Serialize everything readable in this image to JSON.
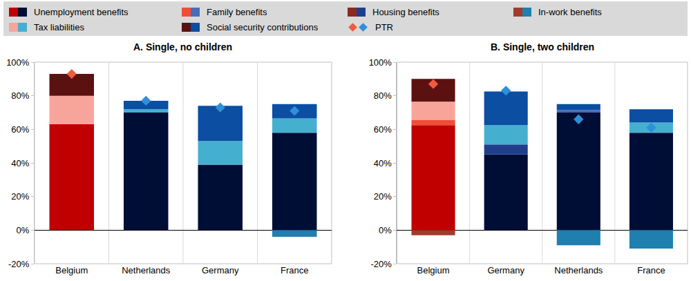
{
  "chart_data": [
    {
      "type": "bar",
      "title": "A. Single, no children",
      "stacked": true,
      "legend": "top",
      "grid": false,
      "categories": [
        "Belgium",
        "Netherlands",
        "Germany",
        "France"
      ],
      "ylim": [
        -20,
        100
      ],
      "yticks": [
        {
          "value": -20,
          "label": "-20%"
        },
        {
          "value": 0,
          "label": "0%"
        },
        {
          "value": 20,
          "label": "20%"
        },
        {
          "value": 40,
          "label": "40%"
        },
        {
          "value": 60,
          "label": "60%"
        },
        {
          "value": 80,
          "label": "80%"
        },
        {
          "value": 100,
          "label": "100%"
        }
      ],
      "series": [
        {
          "name": "Unemployment benefits",
          "colors": [
            "#c00000",
            "#000d35",
            "#000d35",
            "#000d35"
          ],
          "values": [
            63,
            70,
            39,
            58
          ]
        },
        {
          "name": "Family benefits",
          "colors": [
            "#f04e37",
            "#4a6bb8",
            "#4a6bb8",
            "#4a6bb8"
          ],
          "values": [
            0,
            0,
            0,
            0
          ]
        },
        {
          "name": "Housing benefits",
          "colors": [
            "#8c2a22",
            "#1f3f8c",
            "#1f3f8c",
            "#1f3f8c"
          ],
          "values": [
            0,
            0,
            0,
            0
          ]
        },
        {
          "name": "In-work benefits",
          "colors": [
            "#a33b2b",
            "#1f7fae",
            "#1f7fae",
            "#1f7fae"
          ],
          "values": [
            0,
            0,
            0,
            -4
          ]
        },
        {
          "name": "Tax liabilities",
          "colors": [
            "#f7a59a",
            "#45afd0",
            "#45afd0",
            "#45afd0"
          ],
          "values": [
            17,
            2,
            14,
            8.5
          ]
        },
        {
          "name": "Social security contributions",
          "colors": [
            "#5c1111",
            "#0b4ea2",
            "#0b4ea2",
            "#0b4ea2"
          ],
          "values": [
            13,
            5,
            21,
            8.5
          ]
        },
        {
          "name": "PTR",
          "type": "scatter",
          "marker": "diamond",
          "colors": [
            "#f05a40",
            "#2f8fd8",
            "#2f8fd8",
            "#2f8fd8"
          ],
          "values": [
            93,
            77,
            73,
            71
          ]
        }
      ]
    },
    {
      "type": "bar",
      "title": "B. Single, two children",
      "stacked": true,
      "legend": "top",
      "grid": false,
      "categories": [
        "Belgium",
        "Germany",
        "Netherlands",
        "France"
      ],
      "ylim": [
        -20,
        100
      ],
      "yticks": [
        {
          "value": -20,
          "label": "-20%"
        },
        {
          "value": 0,
          "label": "0%"
        },
        {
          "value": 20,
          "label": "20%"
        },
        {
          "value": 40,
          "label": "40%"
        },
        {
          "value": 60,
          "label": "60%"
        },
        {
          "value": 80,
          "label": "80%"
        },
        {
          "value": 100,
          "label": "100%"
        }
      ],
      "series": [
        {
          "name": "Unemployment benefits",
          "colors": [
            "#c00000",
            "#000d35",
            "#000d35",
            "#000d35"
          ],
          "values": [
            62.5,
            45,
            70,
            58
          ]
        },
        {
          "name": "Family benefits",
          "colors": [
            "#f04e37",
            "#4a6bb8",
            "#4a6bb8",
            "#4a6bb8"
          ],
          "values": [
            3,
            0,
            1.5,
            0
          ]
        },
        {
          "name": "Housing benefits",
          "colors": [
            "#8c2a22",
            "#1f3f8c",
            "#1f3f8c",
            "#1f3f8c"
          ],
          "values": [
            0,
            6,
            0,
            0
          ]
        },
        {
          "name": "In-work benefits",
          "colors": [
            "#a33b2b",
            "#1f7fae",
            "#1f7fae",
            "#1f7fae"
          ],
          "values": [
            -3,
            0,
            -9,
            -11
          ]
        },
        {
          "name": "Tax liabilities",
          "colors": [
            "#f7a59a",
            "#45afd0",
            "#45afd0",
            "#45afd0"
          ],
          "values": [
            11,
            11.5,
            0,
            6
          ]
        },
        {
          "name": "Social security contributions",
          "colors": [
            "#5c1111",
            "#0b4ea2",
            "#0b4ea2",
            "#0b4ea2"
          ],
          "values": [
            13.5,
            20,
            3.5,
            8
          ]
        },
        {
          "name": "PTR",
          "type": "scatter",
          "marker": "diamond",
          "colors": [
            "#f05a40",
            "#2f8fd8",
            "#2f8fd8",
            "#2f8fd8"
          ],
          "values": [
            87,
            83,
            66,
            61
          ]
        }
      ]
    }
  ]
}
